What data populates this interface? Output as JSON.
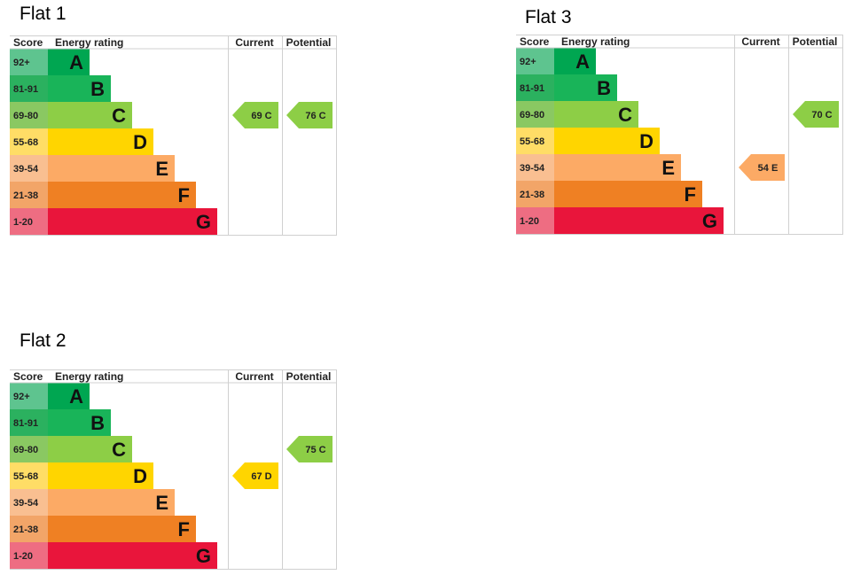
{
  "headers": {
    "score": "Score",
    "rating": "Energy rating",
    "current": "Current",
    "potential": "Potential"
  },
  "bands": [
    {
      "letter": "A",
      "range": "92+",
      "color": "#00a651",
      "score_color": "#5ec48f"
    },
    {
      "letter": "B",
      "range": "81-91",
      "color": "#19b459",
      "score_color": "#2bb15f"
    },
    {
      "letter": "C",
      "range": "69-80",
      "color": "#8dce46",
      "score_color": "#8ac862"
    },
    {
      "letter": "D",
      "range": "55-68",
      "color": "#ffd500",
      "score_color": "#ffdd66"
    },
    {
      "letter": "E",
      "range": "39-54",
      "color": "#fcaa65",
      "score_color": "#f9bf91"
    },
    {
      "letter": "F",
      "range": "21-38",
      "color": "#ef8023",
      "score_color": "#f2a568"
    },
    {
      "letter": "G",
      "range": "1-20",
      "color": "#e9153b",
      "score_color": "#ee6d82"
    }
  ],
  "chart_data": [
    {
      "type": "table",
      "title": "Flat 1",
      "current": {
        "value": 69,
        "band": "C"
      },
      "potential": {
        "value": 76,
        "band": "C"
      }
    },
    {
      "type": "table",
      "title": "Flat 3",
      "current": {
        "value": 54,
        "band": "E"
      },
      "potential": {
        "value": 70,
        "band": "C"
      }
    },
    {
      "type": "table",
      "title": "Flat 2",
      "current": {
        "value": 67,
        "band": "D"
      },
      "potential": {
        "value": 75,
        "band": "C"
      }
    }
  ]
}
